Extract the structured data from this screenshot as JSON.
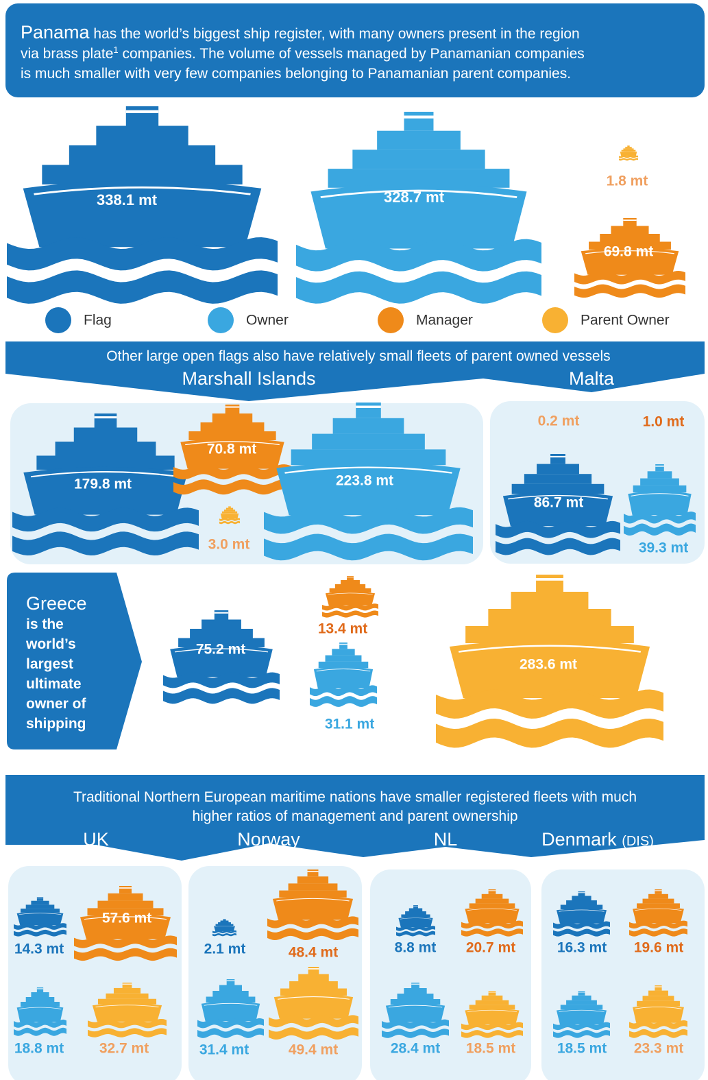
{
  "intro": {
    "lead": "Panama",
    "line1": " has the world’s biggest ship register, with many owners present in the region",
    "line2a": "via brass plate",
    "footnote": "1",
    "line2b": " companies. The volume of vessels managed by Panamanian companies",
    "line3": "is much smaller with very few companies belonging to Panamanian parent companies."
  },
  "legend": [
    "Flag",
    "Owner",
    "Manager",
    "Parent Owner"
  ],
  "panama": {
    "flag": "338.1 mt",
    "owner": "328.7 mt",
    "parent_owner": "1.8 mt",
    "manager": "69.8 mt"
  },
  "open_flags": {
    "title": "Other large open flags also have relatively small fleets of parent owned vessels",
    "marshall_islands": {
      "name": "Marshall Islands",
      "flag": "179.8 mt",
      "manager": "70.8 mt",
      "parent_owner": "3.0 mt",
      "owner": "223.8 mt"
    },
    "malta": {
      "name": "Malta",
      "parent_owner": "0.2 mt",
      "manager": "1.0 mt",
      "flag": "86.7 mt",
      "owner": "39.3 mt"
    }
  },
  "greece": {
    "name": "Greece",
    "lines": [
      "is the",
      "world’s",
      "largest",
      "ultimate",
      "owner of",
      "shipping"
    ],
    "flag": "75.2 mt",
    "manager": "13.4 mt",
    "owner": "31.1 mt",
    "parent_owner": "283.6 mt"
  },
  "northern": {
    "title_lines": [
      "Traditional Northern European maritime nations have smaller registered fleets with much",
      "higher ratios of management and parent ownership"
    ],
    "countries": [
      {
        "name": "UK",
        "flag": "14.3 mt",
        "manager": "57.6 mt",
        "owner": "18.8 mt",
        "parent_owner": "32.7 mt"
      },
      {
        "name": "Norway",
        "flag": "2.1 mt",
        "manager": "48.4 mt",
        "owner": "31.4 mt",
        "parent_owner": "49.4 mt"
      },
      {
        "name": "NL",
        "flag": "8.8 mt",
        "manager": "20.7 mt",
        "owner": "28.4 mt",
        "parent_owner": "18.5 mt"
      },
      {
        "name": "Denmark",
        "suffix": "(DIS)",
        "flag": "16.3 mt",
        "manager": "19.6 mt",
        "owner": "18.5 mt",
        "parent_owner": "23.3 mt"
      }
    ]
  }
}
